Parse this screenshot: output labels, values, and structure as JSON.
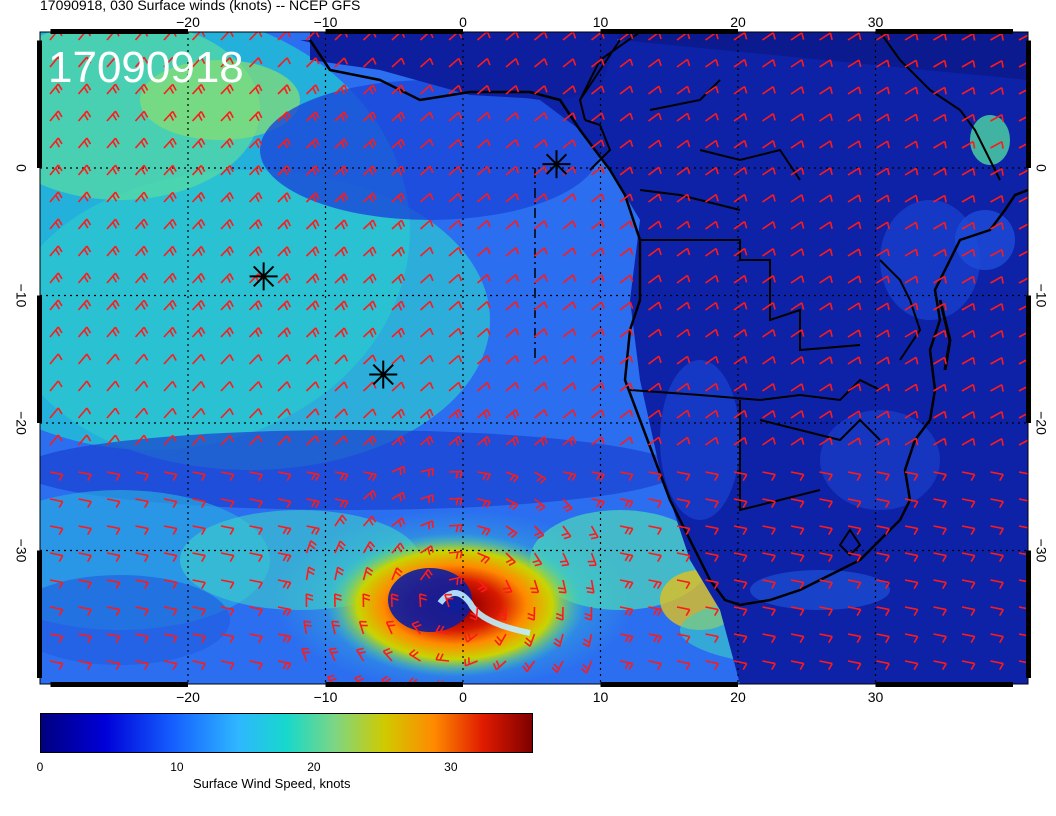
{
  "title": "17090918, 030 Surface winds (knots) -- NCEP GFS",
  "timestamp_overlay": "17090918",
  "lon_ticks": [
    {
      "lon": -20,
      "label": "−20"
    },
    {
      "lon": -10,
      "label": "−10"
    },
    {
      "lon": 0,
      "label": "0"
    },
    {
      "lon": 10,
      "label": "10"
    },
    {
      "lon": 20,
      "label": "20"
    },
    {
      "lon": 30,
      "label": "30"
    }
  ],
  "lat_ticks": [
    {
      "lat": 0,
      "label": "0"
    },
    {
      "lat": -10,
      "label": "−10"
    },
    {
      "lat": -20,
      "label": "−20"
    },
    {
      "lat": -30,
      "label": "−30"
    }
  ],
  "colorbar": {
    "label": "Surface Wind Speed, knots",
    "min": 0,
    "max": 36,
    "ticks": [
      {
        "value": 0,
        "label": "0"
      },
      {
        "value": 10,
        "label": "10"
      },
      {
        "value": 20,
        "label": "20"
      },
      {
        "value": 30,
        "label": "30"
      }
    ]
  },
  "storm_markers": [
    {
      "lon": -14.5,
      "lat": -8.5
    },
    {
      "lon": -5.8,
      "lat": -16.2
    },
    {
      "lon": 6.8,
      "lat": 0.3
    }
  ],
  "colors": {
    "barb": "#ff1a1a",
    "coastline": "#000000",
    "ocean_low": "#1f3fd6",
    "land_low": "#0d1f9e",
    "storm_high": "#b00000"
  }
}
